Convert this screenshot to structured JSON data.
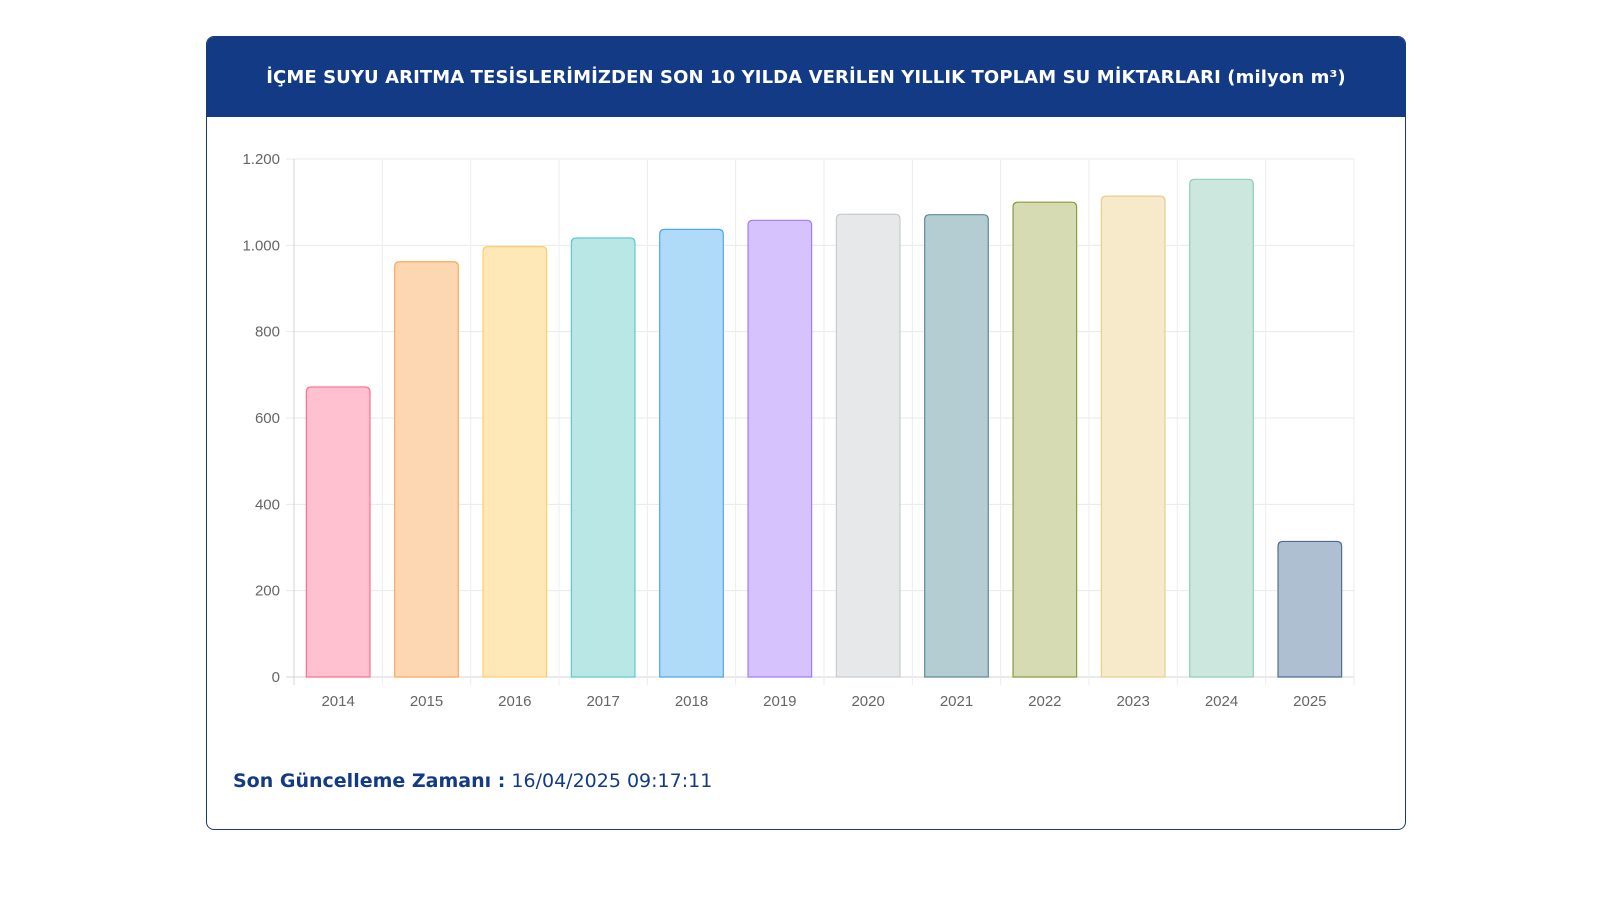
{
  "header": {
    "title": "İÇME SUYU ARITMA TESİSLERİMİZDEN SON 10 YILDA VERİLEN YILLIK TOPLAM SU MİKTARLARI (milyon m³)"
  },
  "footer": {
    "label": "Son Güncelleme Zamanı :",
    "value": "16/04/2025 09:17:11"
  },
  "chart_data": {
    "type": "bar",
    "title": "İÇME SUYU ARITMA TESİSLERİMİZDEN SON 10 YILDA VERİLEN YILLIK TOPLAM SU MİKTARLARI (milyon m³)",
    "xlabel": "",
    "ylabel": "",
    "categories": [
      "2014",
      "2015",
      "2016",
      "2017",
      "2018",
      "2019",
      "2020",
      "2021",
      "2022",
      "2023",
      "2024",
      "2025"
    ],
    "values": [
      672,
      962,
      997,
      1017,
      1037,
      1058,
      1072,
      1071,
      1100,
      1114,
      1153,
      314
    ],
    "ylim": [
      0,
      1200
    ],
    "yticks": [
      0,
      200,
      400,
      600,
      800,
      1000,
      1200
    ],
    "ytick_labels": [
      "0",
      "200",
      "400",
      "600",
      "800",
      "1.000",
      "1.200"
    ],
    "grid": true,
    "legend": "none",
    "bar_fill_colors": [
      "#ffc1cf",
      "#fdd7b2",
      "#fee8b8",
      "#b9e7e6",
      "#afdbf8",
      "#d6c3fd",
      "#e7e8ea",
      "#b3cdd3",
      "#d6dbb3",
      "#f6eacb",
      "#cbe7de",
      "#aebfd2"
    ],
    "bar_border_colors": [
      "#ff6d8f",
      "#fca85a",
      "#fdcd68",
      "#5ccbcb",
      "#4aa9ec",
      "#a37afe",
      "#c9cbcf",
      "#5d8c95",
      "#8c9b3a",
      "#e6cf8a",
      "#8fcfb8",
      "#4e6d95"
    ]
  }
}
